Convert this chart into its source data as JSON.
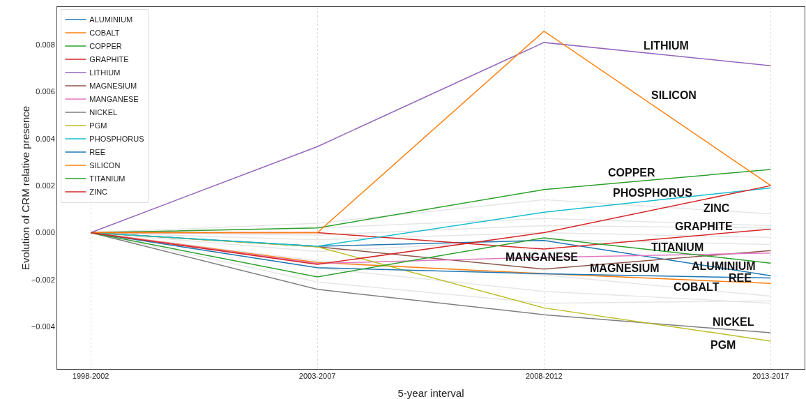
{
  "chart_data": {
    "type": "line",
    "xlabel": "5-year interval",
    "ylabel": "Evolution of CRM relative presence",
    "categories": [
      "1998-2002",
      "2003-2007",
      "2008-2012",
      "2013-2017"
    ],
    "ylim": [
      -0.0058,
      0.0096
    ],
    "yticks": [
      {
        "value": -0.004,
        "label": "−0.004"
      },
      {
        "value": -0.002,
        "label": "−0.002"
      },
      {
        "value": 0,
        "label": "0.000"
      },
      0.002,
      0.004,
      0.006,
      0.008
    ],
    "grid": "x",
    "legend": "top left",
    "line_style": "solid",
    "series": [
      {
        "color": "#e6e6e6",
        "values": [
          0,
          0.0004,
          0.0014,
          0.0008
        ]
      },
      {
        "color": "#e6e6e6",
        "values": [
          0,
          0.0002,
          0.0006,
          0.0003
        ]
      },
      {
        "color": "#e6e6e6",
        "values": [
          0,
          -0.0001,
          0.0003,
          0.0002
        ]
      },
      {
        "color": "#e6e6e6",
        "values": [
          0,
          -0.0003,
          0.0,
          -0.0002
        ]
      },
      {
        "color": "#e6e6e6",
        "values": [
          0,
          -0.0008,
          -0.0003,
          -0.0005
        ]
      },
      {
        "color": "#e6e6e6",
        "values": [
          0,
          -0.0012,
          -0.0018,
          -0.0027
        ]
      },
      {
        "color": "#e6e6e6",
        "values": [
          0,
          -0.0021,
          -0.003,
          -0.0029
        ]
      },
      {
        "color": "#e6e6e6",
        "values": [
          0,
          -0.0015,
          -0.0025,
          -0.003
        ]
      },
      {
        "name": "ALUMINIUM",
        "color": "#1f77b4",
        "values": [
          0,
          -0.00058,
          -0.00033,
          -0.00183
        ]
      },
      {
        "name": "COBALT",
        "color": "#ff7f0e",
        "values": [
          0,
          -0.00127,
          -0.00174,
          -0.00216
        ]
      },
      {
        "name": "COPPER",
        "color": "#2ca02c",
        "values": [
          0,
          0.0002,
          0.00183,
          0.00269
        ]
      },
      {
        "name": "GRAPHITE",
        "color": "#d62728",
        "values": [
          0,
          0.0,
          -0.0007,
          0.00015
        ]
      },
      {
        "name": "LITHIUM",
        "color": "#9467bd",
        "values": [
          0,
          0.00366,
          0.00809,
          0.0071
        ]
      },
      {
        "name": "MAGNESIUM",
        "color": "#8c564b",
        "values": [
          0,
          -0.0006,
          -0.00155,
          -0.00076
        ]
      },
      {
        "name": "MANGANESE",
        "color": "#e377c2",
        "values": [
          0,
          -0.00131,
          -0.00105,
          -0.00087
        ]
      },
      {
        "name": "NICKEL",
        "color": "#7f7f7f",
        "values": [
          0,
          -0.00241,
          -0.00349,
          -0.00426
        ]
      },
      {
        "name": "PGM",
        "color": "#bcbd22",
        "values": [
          0,
          -0.0006,
          -0.0032,
          -0.00461
        ]
      },
      {
        "name": "PHOSPHORUS",
        "color": "#17becf",
        "values": [
          0,
          -0.00058,
          0.00087,
          0.0019
        ]
      },
      {
        "name": "REE",
        "color": "#1f77b4",
        "values": [
          0,
          -0.00149,
          -0.00175,
          -0.00193
        ]
      },
      {
        "name": "SILICON",
        "color": "#ff7f0e",
        "values": [
          0,
          0.0,
          0.00857,
          0.00201
        ]
      },
      {
        "name": "TITANIUM",
        "color": "#2ca02c",
        "values": [
          0,
          -0.00188,
          -0.00022,
          -0.0013
        ]
      },
      {
        "name": "ZINC",
        "color": "#d62728",
        "values": [
          0,
          -0.00135,
          0.0,
          0.002
        ]
      }
    ]
  }
}
